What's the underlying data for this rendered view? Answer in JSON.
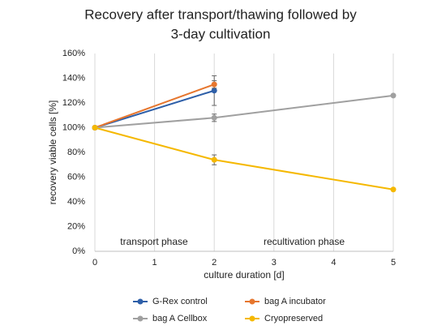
{
  "chart_data": {
    "type": "line",
    "title": [
      "Recovery after transport/thawing followed by",
      "3-day cultivation"
    ],
    "x_label": "culture duration [d]",
    "y_label": "recovery viable cells [%]",
    "xlim": [
      0,
      5
    ],
    "xticks": [
      0,
      1,
      2,
      3,
      4,
      5
    ],
    "ylim": [
      0,
      160
    ],
    "yticks": [
      {
        "value": 0,
        "label": "0%"
      },
      {
        "value": 20,
        "label": "20%"
      },
      {
        "value": 40,
        "label": "40%"
      },
      {
        "value": 60,
        "label": "60%"
      },
      {
        "value": 80,
        "label": "80%"
      },
      {
        "value": 100,
        "label": "100%"
      },
      {
        "value": 120,
        "label": "120%"
      },
      {
        "value": 140,
        "label": "140%"
      },
      {
        "value": 160,
        "label": "160%"
      }
    ],
    "grid": "x",
    "legend": "bottom",
    "annotations": [
      "transport phase",
      "recultivation phase"
    ],
    "series": [
      {
        "name": "G-Rex control",
        "color": "#2e5fa8",
        "x": [
          0,
          2
        ],
        "values": [
          100,
          130
        ],
        "errors": [
          null,
          12
        ]
      },
      {
        "name": "bag A incubator",
        "color": "#e6762e",
        "x": [
          0,
          2
        ],
        "values": [
          100,
          135
        ],
        "errors": [
          null,
          3
        ]
      },
      {
        "name": "bag A Cellbox",
        "color": "#a0a0a0",
        "x": [
          0,
          2,
          5
        ],
        "values": [
          100,
          108,
          126
        ],
        "errors": [
          null,
          3,
          null
        ]
      },
      {
        "name": "Cryopreserved",
        "color": "#f5b800",
        "x": [
          0,
          2,
          5
        ],
        "values": [
          100,
          74,
          50
        ],
        "errors": [
          null,
          4,
          null
        ]
      }
    ]
  }
}
